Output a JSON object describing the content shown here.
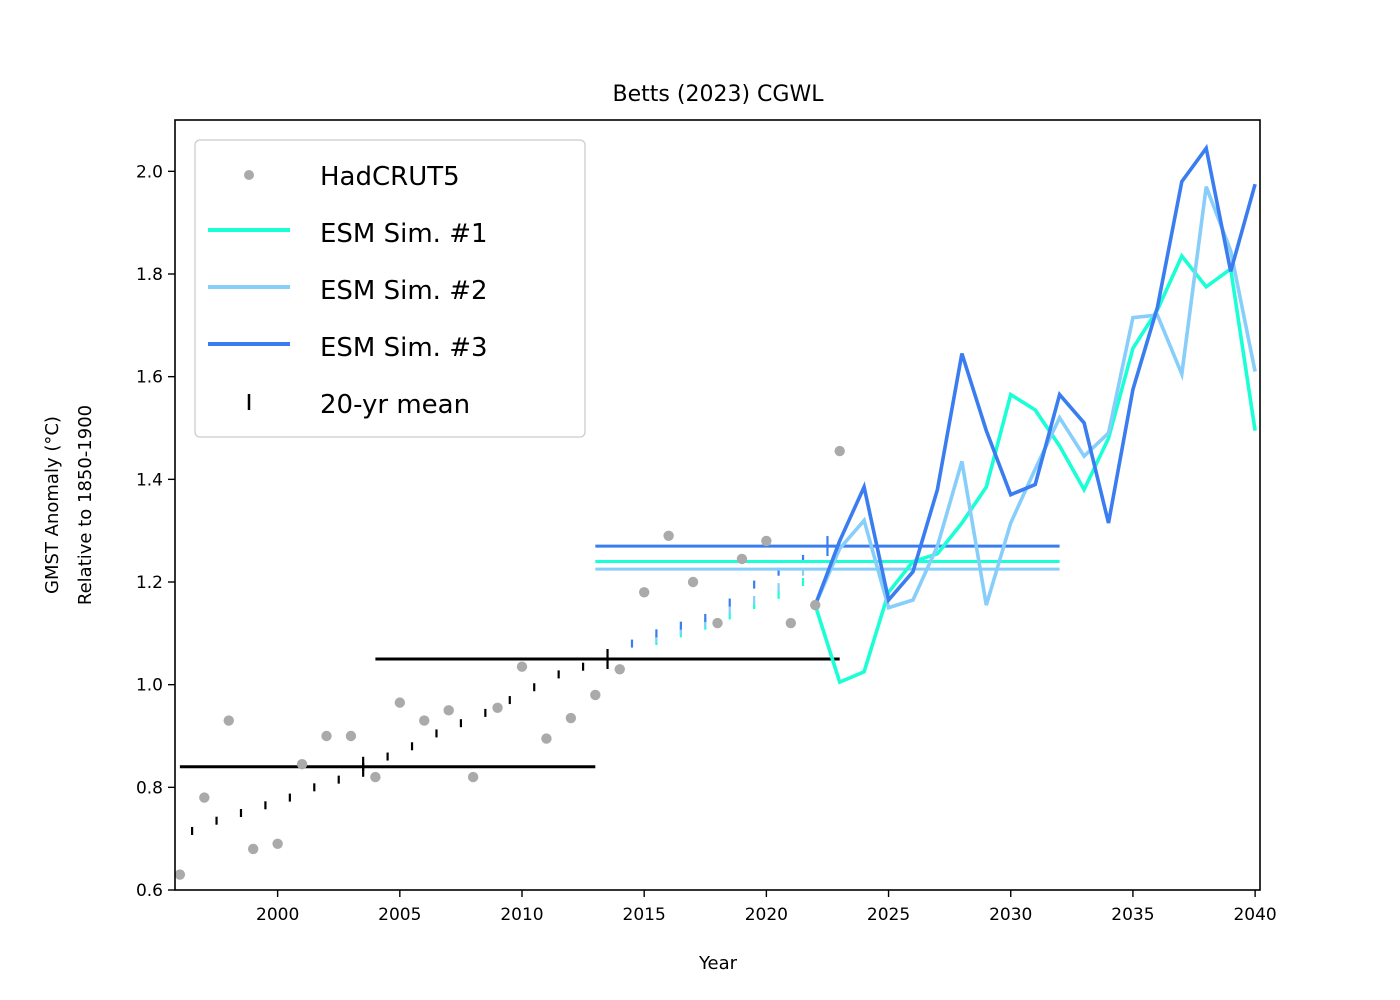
{
  "chart_data": {
    "type": "line",
    "title": "Betts (2023) CGWL",
    "xlabel": "Year",
    "ylabel_line1": "GMST Anomaly (°C)",
    "ylabel_line2": "Relative to 1850-1900",
    "xlim": [
      1995.8,
      2040.2
    ],
    "ylim": [
      0.6,
      2.1
    ],
    "xticks": [
      2000,
      2005,
      2010,
      2015,
      2020,
      2025,
      2030,
      2035,
      2040
    ],
    "yticks": [
      0.6,
      0.8,
      1.0,
      1.2,
      1.4,
      1.6,
      1.8,
      2.0
    ],
    "ytick_labels": [
      "0.6",
      "0.8",
      "1.0",
      "1.2",
      "1.4",
      "1.6",
      "1.8",
      "2.0"
    ],
    "legend_position": "upper-left",
    "observations": {
      "name": "HadCRUT5",
      "color": "#aaaaaa",
      "x": [
        1996,
        1997,
        1998,
        1999,
        2000,
        2001,
        2002,
        2003,
        2004,
        2005,
        2006,
        2007,
        2008,
        2009,
        2010,
        2011,
        2012,
        2013,
        2014,
        2015,
        2016,
        2017,
        2018,
        2019,
        2020,
        2021,
        2022,
        2023
      ],
      "y": [
        0.63,
        0.78,
        0.93,
        0.68,
        0.69,
        0.845,
        0.9,
        0.9,
        0.82,
        0.965,
        0.93,
        0.95,
        0.82,
        0.955,
        1.035,
        0.895,
        0.935,
        0.98,
        1.03,
        1.18,
        1.29,
        1.2,
        1.12,
        1.245,
        1.28,
        1.12,
        1.155,
        1.455
      ]
    },
    "series": [
      {
        "name": "ESM Sim. #1",
        "color": "#1affd5",
        "x": [
          2022,
          2023,
          2024,
          2025,
          2026,
          2027,
          2028,
          2029,
          2030,
          2031,
          2032,
          2033,
          2034,
          2035,
          2036,
          2037,
          2038,
          2039,
          2040
        ],
        "y": [
          1.155,
          1.005,
          1.025,
          1.18,
          1.24,
          1.255,
          1.315,
          1.385,
          1.565,
          1.535,
          1.465,
          1.38,
          1.48,
          1.655,
          1.73,
          1.835,
          1.775,
          1.81,
          1.495
        ]
      },
      {
        "name": "ESM Sim. #2",
        "color": "#87cefa",
        "x": [
          2022,
          2023,
          2024,
          2025,
          2026,
          2027,
          2028,
          2029,
          2030,
          2031,
          2032,
          2033,
          2034,
          2035,
          2036,
          2037,
          2038,
          2039,
          2040
        ],
        "y": [
          1.155,
          1.265,
          1.32,
          1.15,
          1.165,
          1.27,
          1.435,
          1.155,
          1.315,
          1.42,
          1.52,
          1.445,
          1.49,
          1.715,
          1.72,
          1.605,
          1.97,
          1.845,
          1.61
        ]
      },
      {
        "name": "ESM Sim. #3",
        "color": "#3a7df0",
        "x": [
          2022,
          2023,
          2024,
          2025,
          2026,
          2027,
          2028,
          2029,
          2030,
          2031,
          2032,
          2033,
          2034,
          2035,
          2036,
          2037,
          2038,
          2039,
          2040
        ],
        "y": [
          1.155,
          1.28,
          1.385,
          1.165,
          1.22,
          1.38,
          1.645,
          1.495,
          1.37,
          1.39,
          1.565,
          1.51,
          1.315,
          1.575,
          1.735,
          1.98,
          2.045,
          1.805,
          1.975
        ]
      }
    ],
    "twenty_yr_mean": {
      "name": "20-yr mean",
      "color": "#000000",
      "trend": [
        {
          "color": "#000000",
          "x": [
            1996.5,
            1997.5,
            1998.5,
            1999.5,
            2000.5,
            2001.5,
            2002.5,
            2003.5,
            2004.5,
            2005.5,
            2006.5,
            2007.5,
            2008.5,
            2009.5,
            2010.5,
            2011.5,
            2012.5
          ],
          "y": [
            0.715,
            0.735,
            0.75,
            0.765,
            0.78,
            0.8,
            0.815,
            0.84,
            0.86,
            0.88,
            0.905,
            0.925,
            0.945,
            0.97,
            0.995,
            1.02,
            1.035
          ]
        },
        {
          "color": "#1affd5",
          "x": [
            2015.5,
            2016.5,
            2017.5,
            2018.5,
            2019.5,
            2020.5,
            2021.5
          ],
          "y": [
            1.085,
            1.1,
            1.115,
            1.135,
            1.155,
            1.175,
            1.2
          ]
        },
        {
          "color": "#87cefa",
          "x": [
            2015.5,
            2016.5,
            2017.5,
            2018.5,
            2019.5,
            2020.5,
            2021.5
          ],
          "y": [
            1.09,
            1.105,
            1.12,
            1.145,
            1.165,
            1.19,
            1.22
          ]
        },
        {
          "color": "#3a7df0",
          "x": [
            2014.5,
            2015.5,
            2016.5,
            2017.5,
            2018.5,
            2019.5,
            2020.5,
            2021.5
          ],
          "y": [
            1.08,
            1.1,
            1.115,
            1.13,
            1.16,
            1.195,
            1.22,
            1.245
          ]
        }
      ],
      "bars": [
        {
          "color": "#000000",
          "x_start": 1996,
          "x_end": 2013,
          "y": 0.84,
          "marker_x": 2003.5
        },
        {
          "color": "#000000",
          "x_start": 2004,
          "x_end": 2023,
          "y": 1.05,
          "marker_x": 2013.5
        },
        {
          "color": "#3a7df0",
          "x_start": 2013,
          "x_end": 2032,
          "y": 1.27,
          "marker_x": 2022.5
        },
        {
          "color": "#1affd5",
          "x_start": 2013,
          "x_end": 2032,
          "y": 1.24,
          "marker_x": null
        },
        {
          "color": "#87cefa",
          "x_start": 2013,
          "x_end": 2032,
          "y": 1.225,
          "marker_x": null
        }
      ]
    }
  }
}
